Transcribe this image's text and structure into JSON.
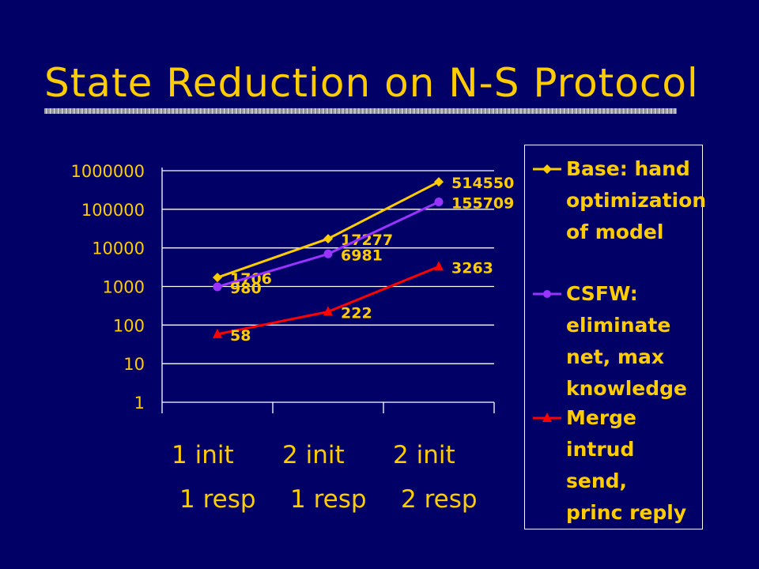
{
  "slide": {
    "title": "State Reduction on N-S Protocol"
  },
  "colors": {
    "background": "#000066",
    "text": "#FFCC00",
    "grid": "#FFFFFF"
  },
  "chart_data": {
    "type": "line",
    "y_scale": "log",
    "ylim": [
      1,
      1000000
    ],
    "y_ticks": [
      "1000000",
      "100000",
      "10000",
      "1000",
      "100",
      "10",
      "1"
    ],
    "categories": [
      {
        "line1": "1 init",
        "line2": "1 resp"
      },
      {
        "line1": "2 init",
        "line2": "1 resp"
      },
      {
        "line1": "2 init",
        "line2": "2 resp"
      }
    ],
    "grid": true,
    "legend_position": "right",
    "series": [
      {
        "legend": "Base: hand optimization of model",
        "legend_lines": [
          "Base: hand",
          "optimization",
          "of model"
        ],
        "values": [
          1706,
          17277,
          514550
        ],
        "labels": [
          "1706",
          "17277",
          "514550"
        ],
        "color": "#FFCC00",
        "marker": "diamond"
      },
      {
        "legend": "CSFW: eliminate net, max knowledge",
        "legend_lines": [
          "CSFW:",
          "eliminate",
          "net, max",
          "knowledge"
        ],
        "values": [
          980,
          6981,
          155709
        ],
        "labels": [
          "980",
          "6981",
          "155709"
        ],
        "color": "#9933FF",
        "marker": "circle"
      },
      {
        "legend": "Merge intrud send, princ reply",
        "legend_lines": [
          "Merge",
          "intrud send,",
          "princ reply"
        ],
        "values": [
          58,
          222,
          3263
        ],
        "labels": [
          "58",
          "222",
          "3263"
        ],
        "color": "#FF0000",
        "marker": "triangle"
      }
    ]
  }
}
